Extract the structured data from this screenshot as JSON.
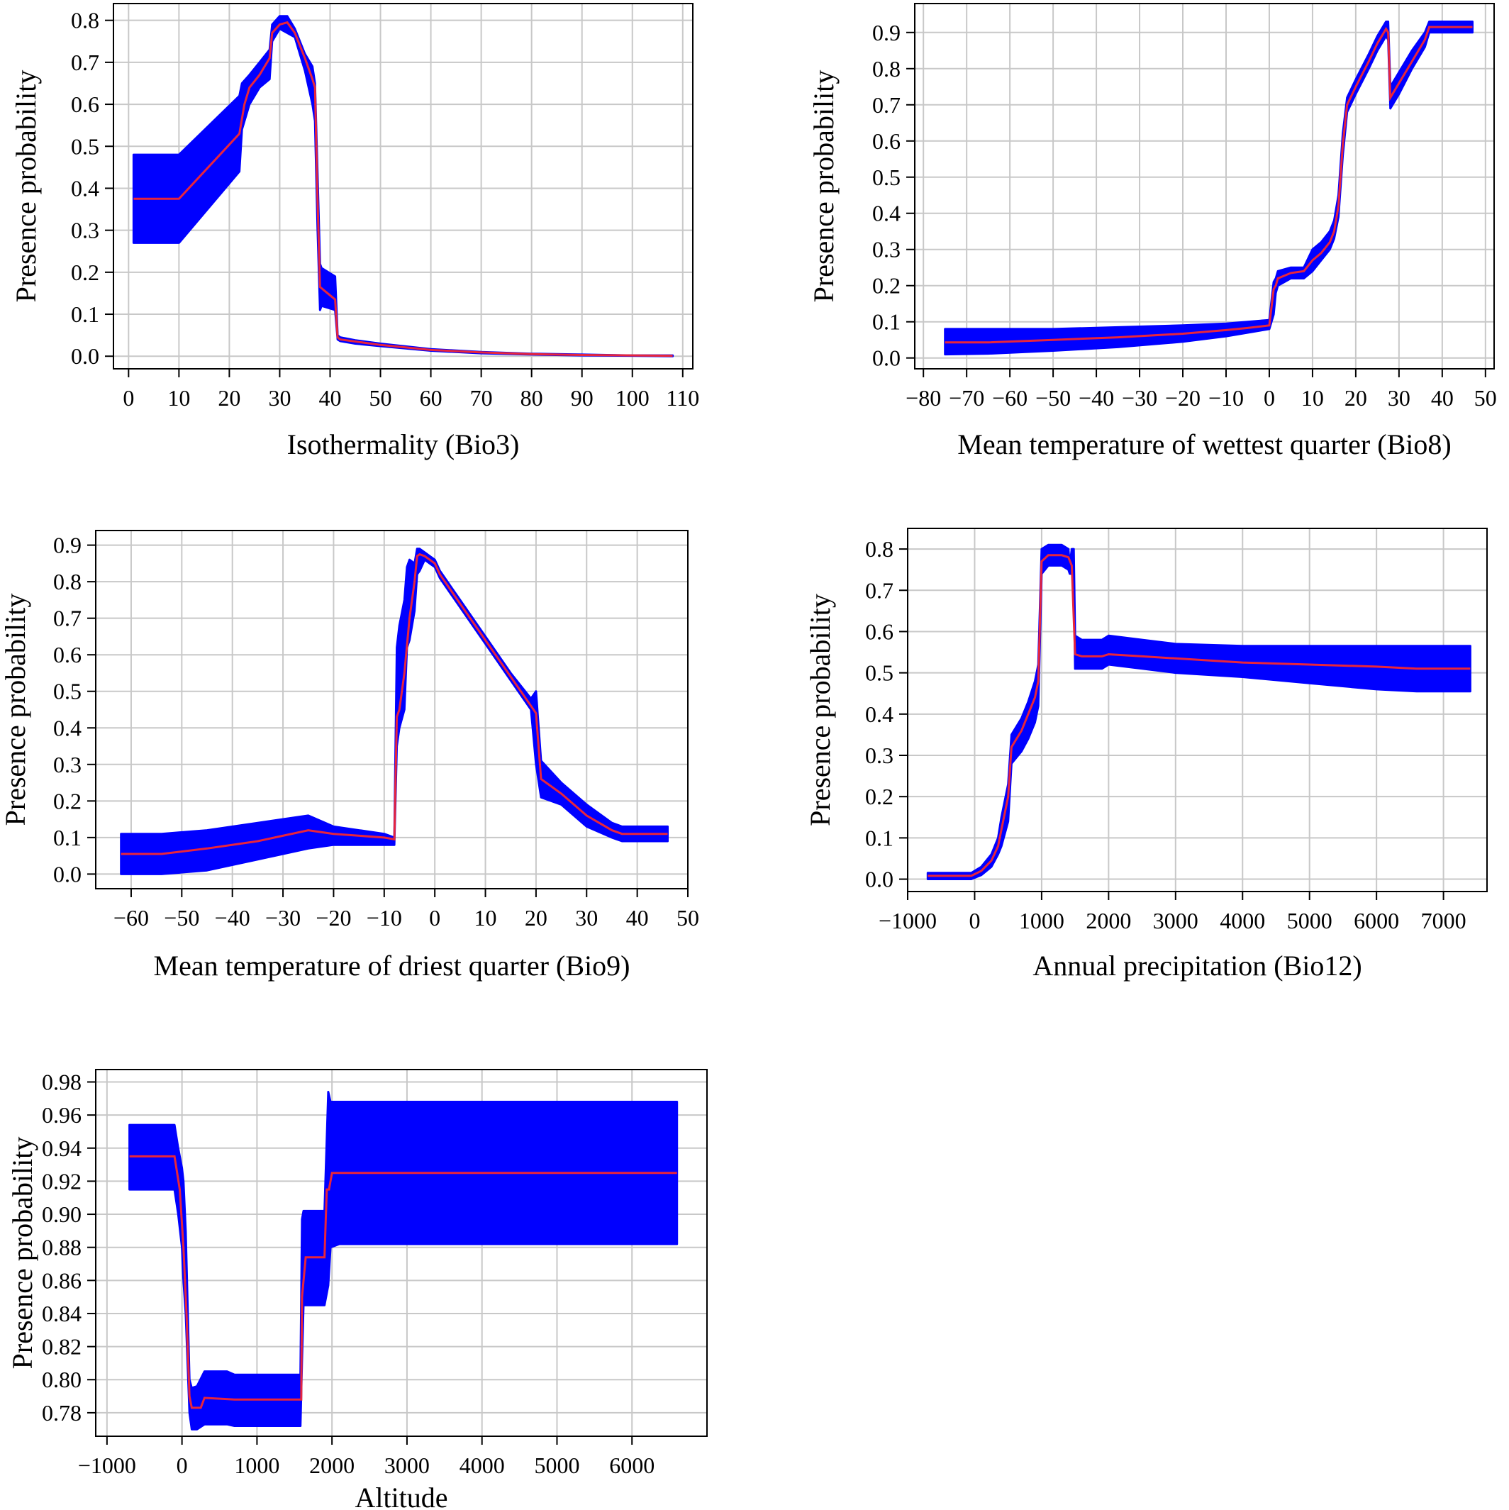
{
  "colors": {
    "band": "#0000ff",
    "line": "#e8253c",
    "grid": "#c8c8c8",
    "frame": "#000000"
  },
  "charts": [
    {
      "type": "area",
      "xlabel": "Isothermality (Bio3)",
      "ylabel": "Presence probability",
      "xlim": [
        -3,
        112
      ],
      "ylim": [
        -0.03,
        0.84
      ],
      "xticks": [
        "0",
        "10",
        "20",
        "30",
        "40",
        "50",
        "60",
        "70",
        "80",
        "90",
        "100",
        "110"
      ],
      "yticks": [
        "0.0",
        "0.1",
        "0.2",
        "0.3",
        "0.4",
        "0.5",
        "0.6",
        "0.7",
        "0.8"
      ],
      "grid": true,
      "series": [
        {
          "kind": "band",
          "x": [
            1,
            10,
            22,
            22.5,
            24,
            26,
            28,
            28.5,
            30,
            31.5,
            33,
            35,
            36.5,
            37,
            37.5,
            38,
            38.3,
            41,
            41.5,
            42,
            45,
            50,
            60,
            70,
            80,
            90,
            100,
            108
          ],
          "upper": [
            0.48,
            0.48,
            0.62,
            0.65,
            0.67,
            0.7,
            0.73,
            0.79,
            0.81,
            0.81,
            0.78,
            0.72,
            0.69,
            0.65,
            0.44,
            0.22,
            0.21,
            0.19,
            0.05,
            0.045,
            0.038,
            0.03,
            0.017,
            0.01,
            0.006,
            0.004,
            0.002,
            0.002
          ],
          "lower": [
            0.27,
            0.27,
            0.44,
            0.54,
            0.6,
            0.64,
            0.66,
            0.75,
            0.78,
            0.77,
            0.76,
            0.68,
            0.6,
            0.56,
            0.31,
            0.11,
            0.12,
            0.11,
            0.04,
            0.036,
            0.03,
            0.024,
            0.013,
            0.007,
            0.004,
            0.002,
            0.001,
            0.0
          ]
        },
        {
          "kind": "line",
          "x": [
            1,
            10,
            22,
            23,
            24,
            26,
            28,
            28.5,
            30,
            31.5,
            33,
            35,
            36.5,
            37,
            37.5,
            38,
            41,
            41.5,
            42,
            45,
            50,
            60,
            70,
            80,
            90,
            100,
            108
          ],
          "y": [
            0.375,
            0.375,
            0.53,
            0.6,
            0.64,
            0.67,
            0.71,
            0.77,
            0.79,
            0.795,
            0.77,
            0.71,
            0.66,
            0.64,
            0.38,
            0.165,
            0.135,
            0.045,
            0.04,
            0.035,
            0.027,
            0.015,
            0.009,
            0.005,
            0.003,
            0.002,
            0.001
          ]
        }
      ]
    },
    {
      "type": "area",
      "xlabel": "Mean temperature of wettest quarter (Bio8)",
      "ylabel": "Presence probability",
      "xlim": [
        -82,
        52
      ],
      "ylim": [
        -0.03,
        0.98
      ],
      "xticks": [
        "−80",
        "−70",
        "−60",
        "−50",
        "−40",
        "−30",
        "−20",
        "−10",
        "0",
        "10",
        "20",
        "30",
        "40",
        "50"
      ],
      "yticks": [
        "0.0",
        "0.1",
        "0.2",
        "0.3",
        "0.4",
        "0.5",
        "0.6",
        "0.7",
        "0.8",
        "0.9"
      ],
      "grid": true,
      "series": [
        {
          "kind": "band",
          "x": [
            -75,
            -65,
            -50,
            -35,
            -20,
            -10,
            -5,
            0,
            1,
            1.5,
            2,
            5,
            8,
            10,
            12,
            14,
            15,
            16,
            17,
            18,
            20,
            23,
            25,
            27,
            27.5,
            28,
            30,
            33,
            36,
            37,
            47
          ],
          "upper": [
            0.08,
            0.08,
            0.08,
            0.085,
            0.09,
            0.095,
            0.1,
            0.105,
            0.21,
            0.22,
            0.24,
            0.25,
            0.25,
            0.3,
            0.32,
            0.35,
            0.38,
            0.45,
            0.62,
            0.72,
            0.77,
            0.84,
            0.89,
            0.93,
            0.93,
            0.75,
            0.79,
            0.85,
            0.9,
            0.93,
            0.93
          ],
          "lower": [
            0.01,
            0.012,
            0.02,
            0.03,
            0.045,
            0.06,
            0.07,
            0.08,
            0.12,
            0.18,
            0.2,
            0.22,
            0.22,
            0.24,
            0.27,
            0.3,
            0.33,
            0.39,
            0.56,
            0.68,
            0.73,
            0.8,
            0.85,
            0.89,
            0.88,
            0.69,
            0.73,
            0.8,
            0.86,
            0.9,
            0.9
          ]
        },
        {
          "kind": "line",
          "x": [
            -75,
            -65,
            -50,
            -35,
            -20,
            -10,
            -5,
            0,
            1,
            1.5,
            2,
            5,
            8,
            10,
            12,
            14,
            15,
            16,
            17,
            18,
            20,
            23,
            25,
            27,
            27.5,
            28,
            30,
            33,
            36,
            37,
            47
          ],
          "y": [
            0.043,
            0.043,
            0.05,
            0.057,
            0.067,
            0.077,
            0.083,
            0.09,
            0.19,
            0.2,
            0.22,
            0.235,
            0.24,
            0.27,
            0.29,
            0.32,
            0.35,
            0.42,
            0.59,
            0.7,
            0.75,
            0.82,
            0.87,
            0.91,
            0.9,
            0.72,
            0.76,
            0.82,
            0.88,
            0.915,
            0.915
          ]
        }
      ]
    },
    {
      "type": "area",
      "xlabel": "Mean temperature of driest quarter (Bio9)",
      "ylabel": "Presence probability",
      "xlim": [
        -67,
        50
      ],
      "ylim": [
        -0.04,
        0.94
      ],
      "xticks": [
        "−60",
        "−50",
        "−40",
        "−30",
        "−20",
        "−10",
        "0",
        "10",
        "20",
        "30",
        "40",
        "50"
      ],
      "yticks": [
        "0.0",
        "0.1",
        "0.2",
        "0.3",
        "0.4",
        "0.5",
        "0.6",
        "0.7",
        "0.8",
        "0.9"
      ],
      "grid": true,
      "series": [
        {
          "kind": "band",
          "x": [
            -62,
            -54,
            -45,
            -35,
            -25,
            -20,
            -10,
            -8,
            -7.5,
            -7,
            -6,
            -5.5,
            -5,
            -4,
            -3.5,
            -3,
            -2,
            -1,
            0,
            1,
            5,
            10,
            15,
            19,
            20,
            21,
            25,
            30,
            35,
            37,
            46
          ],
          "upper": [
            0.11,
            0.11,
            0.12,
            0.14,
            0.16,
            0.13,
            0.11,
            0.1,
            0.62,
            0.68,
            0.75,
            0.84,
            0.86,
            0.85,
            0.89,
            0.89,
            0.88,
            0.87,
            0.86,
            0.83,
            0.75,
            0.65,
            0.55,
            0.48,
            0.5,
            0.31,
            0.25,
            0.19,
            0.14,
            0.13,
            0.13
          ],
          "lower": [
            0.0,
            0.0,
            0.01,
            0.04,
            0.07,
            0.08,
            0.08,
            0.08,
            0.35,
            0.4,
            0.45,
            0.62,
            0.64,
            0.72,
            0.82,
            0.83,
            0.86,
            0.85,
            0.84,
            0.81,
            0.73,
            0.63,
            0.53,
            0.45,
            0.3,
            0.21,
            0.19,
            0.13,
            0.1,
            0.09,
            0.09
          ]
        },
        {
          "kind": "line",
          "x": [
            -62,
            -54,
            -45,
            -35,
            -25,
            -20,
            -10,
            -8,
            -7.5,
            -7,
            -6,
            -5,
            -4,
            -3.5,
            -3,
            -2,
            -1,
            0,
            1,
            5,
            10,
            15,
            19,
            20,
            21,
            25,
            30,
            35,
            37,
            46
          ],
          "y": [
            0.055,
            0.055,
            0.07,
            0.09,
            0.12,
            0.11,
            0.1,
            0.095,
            0.43,
            0.45,
            0.55,
            0.7,
            0.8,
            0.87,
            0.875,
            0.87,
            0.86,
            0.85,
            0.82,
            0.74,
            0.64,
            0.54,
            0.46,
            0.44,
            0.26,
            0.22,
            0.16,
            0.12,
            0.11,
            0.11
          ]
        }
      ]
    },
    {
      "type": "area",
      "xlabel": "Annual precipitation (Bio12)",
      "ylabel": "Presence probability",
      "xlim": [
        -1000,
        7650
      ],
      "ylim": [
        -0.03,
        0.85
      ],
      "xticks": [
        "−1000",
        "0",
        "1000",
        "2000",
        "3000",
        "4000",
        "5000",
        "6000",
        "7000"
      ],
      "yticks": [
        "0.0",
        "0.1",
        "0.2",
        "0.3",
        "0.4",
        "0.5",
        "0.6",
        "0.7",
        "0.8"
      ],
      "grid": true,
      "series": [
        {
          "kind": "band",
          "x": [
            -700,
            -50,
            100,
            250,
            350,
            400,
            500,
            550,
            700,
            800,
            900,
            950,
            1000,
            1100,
            1200,
            1300,
            1400,
            1420,
            1450,
            1480,
            1500,
            1600,
            1900,
            2000,
            2500,
            3000,
            4000,
            5000,
            6000,
            6600,
            7400
          ],
          "upper": [
            0.015,
            0.015,
            0.03,
            0.06,
            0.1,
            0.15,
            0.23,
            0.35,
            0.39,
            0.43,
            0.48,
            0.52,
            0.8,
            0.81,
            0.81,
            0.81,
            0.8,
            0.76,
            0.8,
            0.8,
            0.59,
            0.58,
            0.58,
            0.59,
            0.58,
            0.57,
            0.565,
            0.565,
            0.565,
            0.565,
            0.565
          ],
          "lower": [
            0.0,
            0.0,
            0.01,
            0.03,
            0.06,
            0.08,
            0.14,
            0.28,
            0.31,
            0.34,
            0.38,
            0.42,
            0.74,
            0.76,
            0.76,
            0.76,
            0.75,
            0.74,
            0.74,
            0.73,
            0.51,
            0.51,
            0.51,
            0.52,
            0.51,
            0.5,
            0.49,
            0.475,
            0.46,
            0.455,
            0.455
          ]
        },
        {
          "kind": "line",
          "x": [
            -700,
            -50,
            100,
            250,
            350,
            400,
            500,
            550,
            700,
            800,
            900,
            950,
            1000,
            1100,
            1300,
            1400,
            1450,
            1500,
            1600,
            1900,
            2000,
            2500,
            3000,
            4000,
            5000,
            6000,
            6600,
            7400
          ],
          "y": [
            0.008,
            0.008,
            0.02,
            0.045,
            0.08,
            0.12,
            0.2,
            0.32,
            0.36,
            0.4,
            0.44,
            0.48,
            0.77,
            0.785,
            0.785,
            0.78,
            0.76,
            0.545,
            0.54,
            0.54,
            0.545,
            0.54,
            0.535,
            0.525,
            0.52,
            0.515,
            0.51,
            0.51
          ]
        }
      ]
    },
    {
      "type": "area",
      "xlabel": "Altitude",
      "ylabel": "Presence probability",
      "xlim": [
        -1150,
        7000
      ],
      "ylim": [
        0.7658,
        0.9875
      ],
      "xticks": [
        "−1000",
        "0",
        "1000",
        "2000",
        "3000",
        "4000",
        "5000",
        "6000"
      ],
      "yticks": [
        "0.78",
        "0.80",
        "0.82",
        "0.84",
        "0.86",
        "0.88",
        "0.90",
        "0.92",
        "0.94",
        "0.96",
        "0.98"
      ],
      "grid": true,
      "series": [
        {
          "kind": "band",
          "x": [
            -700,
            -100,
            -50,
            0,
            20,
            50,
            100,
            130,
            200,
            300,
            400,
            600,
            700,
            1000,
            1580,
            1600,
            1620,
            1700,
            1900,
            1950,
            1980,
            2100,
            2500,
            3500,
            4500,
            5500,
            6600
          ],
          "upper": [
            0.954,
            0.954,
            0.94,
            0.928,
            0.92,
            0.89,
            0.8,
            0.795,
            0.796,
            0.805,
            0.805,
            0.805,
            0.803,
            0.803,
            0.803,
            0.897,
            0.902,
            0.902,
            0.902,
            0.974,
            0.968,
            0.968,
            0.968,
            0.968,
            0.968,
            0.968,
            0.968
          ],
          "lower": [
            0.915,
            0.915,
            0.9,
            0.88,
            0.86,
            0.84,
            0.78,
            0.77,
            0.77,
            0.773,
            0.773,
            0.773,
            0.772,
            0.772,
            0.772,
            0.812,
            0.845,
            0.845,
            0.845,
            0.857,
            0.88,
            0.882,
            0.882,
            0.882,
            0.882,
            0.882,
            0.882
          ]
        },
        {
          "kind": "line",
          "x": [
            -700,
            -100,
            -30,
            20,
            60,
            100,
            130,
            250,
            300,
            700,
            1000,
            1590,
            1600,
            1650,
            1900,
            1930,
            1960,
            2000,
            2500,
            3500,
            4500,
            5500,
            6600
          ],
          "y": [
            0.935,
            0.935,
            0.915,
            0.88,
            0.84,
            0.79,
            0.783,
            0.783,
            0.789,
            0.788,
            0.788,
            0.788,
            0.85,
            0.874,
            0.874,
            0.915,
            0.915,
            0.925,
            0.925,
            0.925,
            0.925,
            0.925,
            0.925
          ]
        }
      ]
    }
  ]
}
